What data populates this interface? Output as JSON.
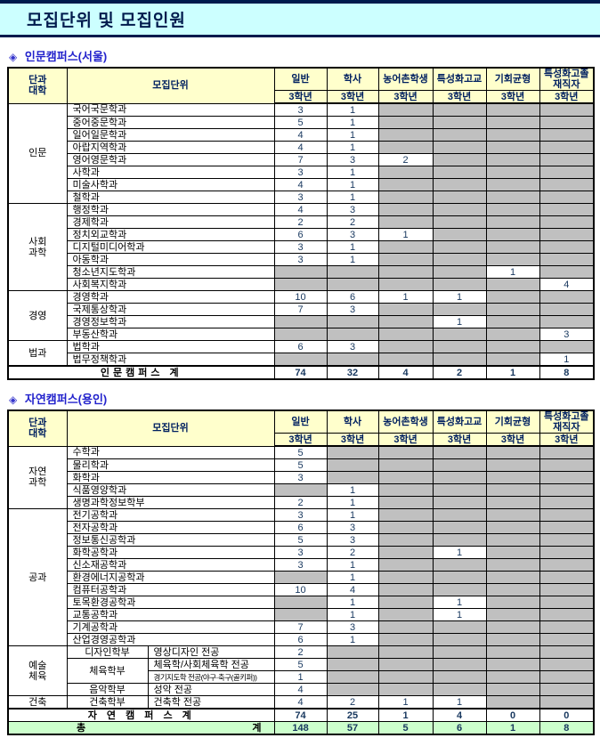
{
  "page_title": "모집단위 및 모집인원",
  "bullet": "◈",
  "columns": {
    "college": "단과\n대학",
    "unit": "모집단위",
    "categories": [
      "일반",
      "학사",
      "농어촌학생",
      "특성화고교",
      "기회균형",
      "특성화고졸\n재직자"
    ],
    "subheader": "3학년"
  },
  "colors": {
    "header_bg": "#ffffcc",
    "empty_cell_bg": "#c0c0c0",
    "grand_total_bg": "#ccffcc",
    "title_band_bg": "#ccffff",
    "navy": "#001a4d",
    "section_blue": "#2222cc",
    "number_text": "#17375e"
  },
  "tables": [
    {
      "section_title": "인문캠퍼스(서울)",
      "groups": [
        {
          "label": "인문",
          "rows": [
            {
              "unit": "국어국문학과",
              "values": [
                3,
                1,
                null,
                null,
                null,
                null
              ]
            },
            {
              "unit": "중어중문학과",
              "values": [
                5,
                1,
                null,
                null,
                null,
                null
              ]
            },
            {
              "unit": "일어일문학과",
              "values": [
                4,
                1,
                null,
                null,
                null,
                null
              ]
            },
            {
              "unit": "아랍지역학과",
              "values": [
                4,
                1,
                null,
                null,
                null,
                null
              ]
            },
            {
              "unit": "영어영문학과",
              "values": [
                7,
                3,
                2,
                null,
                null,
                null
              ]
            },
            {
              "unit": "사학과",
              "values": [
                3,
                1,
                null,
                null,
                null,
                null
              ]
            },
            {
              "unit": "미술사학과",
              "values": [
                4,
                1,
                null,
                null,
                null,
                null
              ]
            },
            {
              "unit": "철학과",
              "values": [
                3,
                1,
                null,
                null,
                null,
                null
              ]
            }
          ]
        },
        {
          "label": "사회\n과학",
          "rows": [
            {
              "unit": "행정학과",
              "values": [
                4,
                3,
                null,
                null,
                null,
                null
              ]
            },
            {
              "unit": "경제학과",
              "values": [
                2,
                2,
                null,
                null,
                null,
                null
              ]
            },
            {
              "unit": "정치외교학과",
              "values": [
                6,
                3,
                1,
                null,
                null,
                null
              ]
            },
            {
              "unit": "디지털미디어학과",
              "values": [
                3,
                1,
                null,
                null,
                null,
                null
              ]
            },
            {
              "unit": "아동학과",
              "values": [
                3,
                1,
                null,
                null,
                null,
                null
              ]
            },
            {
              "unit": "청소년지도학과",
              "values": [
                null,
                null,
                null,
                null,
                1,
                null
              ]
            },
            {
              "unit": "사회복지학과",
              "values": [
                null,
                null,
                null,
                null,
                null,
                4
              ]
            }
          ]
        },
        {
          "label": "경영",
          "rows": [
            {
              "unit": "경영학과",
              "values": [
                10,
                6,
                1,
                1,
                null,
                null
              ]
            },
            {
              "unit": "국제통상학과",
              "values": [
                7,
                3,
                null,
                null,
                null,
                null
              ]
            },
            {
              "unit": "경영정보학과",
              "values": [
                null,
                null,
                null,
                1,
                null,
                null
              ]
            },
            {
              "unit": "부동산학과",
              "values": [
                null,
                null,
                null,
                null,
                null,
                3
              ]
            }
          ]
        },
        {
          "label": "법과",
          "rows": [
            {
              "unit": "법학과",
              "values": [
                6,
                3,
                null,
                null,
                null,
                null
              ]
            },
            {
              "unit": "법무정책학과",
              "values": [
                null,
                null,
                null,
                null,
                null,
                1
              ]
            }
          ]
        }
      ],
      "total_row": {
        "label": "인문캠퍼스 계",
        "values": [
          74,
          32,
          4,
          2,
          1,
          8
        ]
      }
    },
    {
      "section_title": "자연캠퍼스(용인)",
      "groups": [
        {
          "label": "자연\n과학",
          "rows": [
            {
              "unit": "수학과",
              "values": [
                5,
                null,
                null,
                null,
                null,
                null
              ]
            },
            {
              "unit": "물리학과",
              "values": [
                5,
                null,
                null,
                null,
                null,
                null
              ]
            },
            {
              "unit": "화학과",
              "values": [
                3,
                null,
                null,
                null,
                null,
                null
              ]
            },
            {
              "unit": "식품영양학과",
              "values": [
                null,
                1,
                null,
                null,
                null,
                null
              ]
            },
            {
              "unit": "생명과학정보학부",
              "values": [
                2,
                1,
                null,
                null,
                null,
                null
              ]
            }
          ]
        },
        {
          "label": "공과",
          "rows": [
            {
              "unit": "전기공학과",
              "values": [
                3,
                1,
                null,
                null,
                null,
                null
              ]
            },
            {
              "unit": "전자공학과",
              "values": [
                6,
                3,
                null,
                null,
                null,
                null
              ]
            },
            {
              "unit": "정보통신공학과",
              "values": [
                5,
                3,
                null,
                null,
                null,
                null
              ]
            },
            {
              "unit": "화학공학과",
              "values": [
                3,
                2,
                null,
                1,
                null,
                null
              ]
            },
            {
              "unit": "신소재공학과",
              "values": [
                3,
                1,
                null,
                null,
                null,
                null
              ]
            },
            {
              "unit": "환경에너지공학과",
              "values": [
                null,
                1,
                null,
                null,
                null,
                null
              ]
            },
            {
              "unit": "컴퓨터공학과",
              "values": [
                10,
                4,
                null,
                null,
                null,
                null
              ]
            },
            {
              "unit": "토목환경공학과",
              "values": [
                null,
                1,
                null,
                1,
                null,
                null
              ]
            },
            {
              "unit": "교통공학과",
              "values": [
                null,
                1,
                null,
                1,
                null,
                null
              ]
            },
            {
              "unit": "기계공학과",
              "values": [
                7,
                3,
                null,
                null,
                null,
                null
              ]
            },
            {
              "unit": "산업경영공학과",
              "values": [
                6,
                1,
                null,
                null,
                null,
                null
              ]
            }
          ]
        },
        {
          "label": "예술\n체육",
          "rows": [
            {
              "dept": "디자인학부",
              "dept_rowspan": 1,
              "major": "영상디자인 전공",
              "values": [
                2,
                null,
                null,
                null,
                null,
                null
              ]
            },
            {
              "dept": "체육학부",
              "dept_rowspan": 2,
              "major": "체육학/사회체육학 전공",
              "values": [
                5,
                null,
                null,
                null,
                null,
                null
              ]
            },
            {
              "major": "경기지도학 전공(야구·축구(골키퍼))",
              "values": [
                1,
                null,
                null,
                null,
                null,
                null
              ]
            },
            {
              "dept": "음악학부",
              "dept_rowspan": 1,
              "major": "성악 전공",
              "values": [
                4,
                null,
                null,
                null,
                null,
                null
              ]
            }
          ]
        },
        {
          "label": "건축",
          "rows": [
            {
              "dept": "건축학부",
              "dept_rowspan": 1,
              "major": "건축학 전공",
              "values": [
                4,
                2,
                1,
                1,
                null,
                null
              ]
            }
          ]
        }
      ],
      "total_row": {
        "label": "자 연 캠 퍼 스  계",
        "values": [
          74,
          25,
          1,
          4,
          0,
          0
        ]
      },
      "grand_total_row": {
        "label_left": "총",
        "label_right": "계",
        "values": [
          148,
          57,
          5,
          6,
          1,
          8
        ]
      }
    }
  ]
}
